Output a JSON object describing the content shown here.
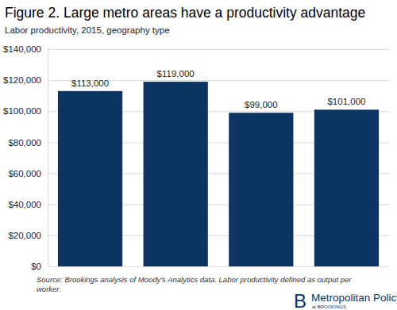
{
  "chart_data": {
    "type": "bar",
    "title": "Figure 2. Large metro areas have a productivity advantage",
    "subtitle": "Labor productivity, 2015, geography type",
    "categories": [
      null,
      null,
      null,
      null
    ],
    "values": [
      113000,
      119000,
      99000,
      101000
    ],
    "value_labels": [
      "$113,000",
      "$119,000",
      "$99,000",
      "$101,000"
    ],
    "data_labels": true,
    "color": "#0c3563",
    "ylim": [
      0,
      140000
    ],
    "yticks": [
      {
        "value": 0,
        "label": "$0"
      },
      {
        "value": 20000,
        "label": "$20,000"
      },
      {
        "value": 40000,
        "label": "$40,000"
      },
      {
        "value": 60000,
        "label": "$60,000"
      },
      {
        "value": 80000,
        "label": "$80,000"
      },
      {
        "value": 100000,
        "label": "$100,000"
      },
      {
        "value": 120000,
        "label": "$120,000"
      },
      {
        "value": 140000,
        "label": "$140,000"
      }
    ],
    "grid": true,
    "source": [
      "Source: Brookings analysis of Moody's Analytics data. Labor productivity defined as output per",
      "worker."
    ],
    "annotations": [
      "B",
      "Metropolitan Policy Program",
      "at BROOKINGS"
    ]
  }
}
